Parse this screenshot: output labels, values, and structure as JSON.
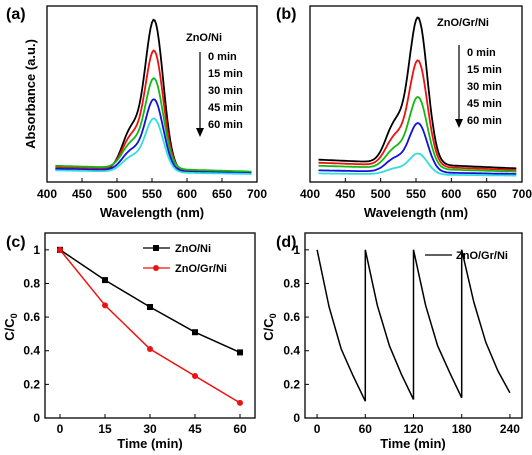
{
  "chart_data": [
    {
      "panel_label": "(a)",
      "type": "line",
      "xlabel": "Wavelength (nm)",
      "ylabel": "Absorbance (a.u.)",
      "xlim": [
        400,
        700
      ],
      "x_ticks": [
        400,
        450,
        500,
        550,
        600,
        650,
        700
      ],
      "y_tick_labels": false,
      "legend_title": "ZnO/Ni",
      "legend_items": [
        "0 min",
        "15 min",
        "30 min",
        "45 min",
        "60 min"
      ],
      "legend_arrow": "down",
      "peak_nm": 553,
      "series": [
        {
          "name": "0 min",
          "color": "#000000",
          "baseline": 0.06,
          "peak": 1.0
        },
        {
          "name": "15 min",
          "color": "#ee1111",
          "baseline": 0.07,
          "peak": 0.8
        },
        {
          "name": "30 min",
          "color": "#11bb11",
          "baseline": 0.08,
          "peak": 0.62
        },
        {
          "name": "45 min",
          "color": "#1111dd",
          "baseline": 0.06,
          "peak": 0.49
        },
        {
          "name": "60 min",
          "color": "#33dddd",
          "baseline": 0.05,
          "peak": 0.37
        }
      ]
    },
    {
      "panel_label": "(b)",
      "type": "line",
      "xlabel": "Wavelength (nm)",
      "ylabel": "",
      "xlim": [
        400,
        700
      ],
      "x_ticks": [
        400,
        450,
        500,
        550,
        600,
        650,
        700
      ],
      "y_tick_labels": false,
      "legend_title": "ZnO/Gr/Ni",
      "legend_items": [
        "0 min",
        "15 min",
        "30 min",
        "45 min",
        "60 min"
      ],
      "legend_arrow": "down",
      "peak_nm": 553,
      "series": [
        {
          "name": "0 min",
          "color": "#000000",
          "baseline": 0.12,
          "peak": 1.0
        },
        {
          "name": "15 min",
          "color": "#ee1111",
          "baseline": 0.1,
          "peak": 0.73
        },
        {
          "name": "30 min",
          "color": "#11bb11",
          "baseline": 0.08,
          "peak": 0.5
        },
        {
          "name": "45 min",
          "color": "#1111dd",
          "baseline": 0.05,
          "peak": 0.34
        },
        {
          "name": "60 min",
          "color": "#33dddd",
          "baseline": 0.03,
          "peak": 0.15
        }
      ]
    },
    {
      "panel_label": "(c)",
      "type": "line",
      "xlabel": "Time (min)",
      "ylabel": "C/C",
      "ylabel_sub": "0",
      "xlim": [
        -5,
        65
      ],
      "ylim": [
        0,
        1.1
      ],
      "x_ticks": [
        0,
        15,
        30,
        45,
        60
      ],
      "y_ticks": [
        0.0,
        0.2,
        0.4,
        0.6,
        0.8,
        1.0
      ],
      "legend_position": "top-right",
      "series": [
        {
          "name": "ZnO/Ni",
          "color": "#000000",
          "marker": "square",
          "x": [
            0,
            15,
            30,
            45,
            60
          ],
          "y": [
            1.0,
            0.82,
            0.66,
            0.51,
            0.39
          ]
        },
        {
          "name": "ZnO/Gr/Ni",
          "color": "#ee1111",
          "marker": "circle",
          "x": [
            0,
            15,
            30,
            45,
            60
          ],
          "y": [
            1.0,
            0.67,
            0.41,
            0.25,
            0.09
          ]
        }
      ]
    },
    {
      "panel_label": "(d)",
      "type": "line",
      "xlabel": "Time (min)",
      "ylabel": "C/C",
      "ylabel_sub": "0",
      "xlim": [
        -15,
        255
      ],
      "ylim": [
        0,
        1.1
      ],
      "x_ticks": [
        0,
        60,
        120,
        180,
        240
      ],
      "y_ticks": [
        0.0,
        0.2,
        0.4,
        0.6,
        0.8,
        1.0
      ],
      "legend_position": "top-right",
      "series": [
        {
          "name": "ZnO/Gr/Ni",
          "color": "#000000",
          "marker": "none",
          "x": [
            0,
            15,
            30,
            45,
            60,
            60,
            75,
            90,
            105,
            120,
            120,
            135,
            150,
            165,
            180,
            180,
            195,
            210,
            225,
            240
          ],
          "y": [
            1.0,
            0.66,
            0.41,
            0.25,
            0.1,
            1.0,
            0.67,
            0.43,
            0.26,
            0.11,
            1.0,
            0.67,
            0.43,
            0.27,
            0.12,
            1.0,
            0.69,
            0.45,
            0.28,
            0.15
          ]
        }
      ]
    }
  ]
}
